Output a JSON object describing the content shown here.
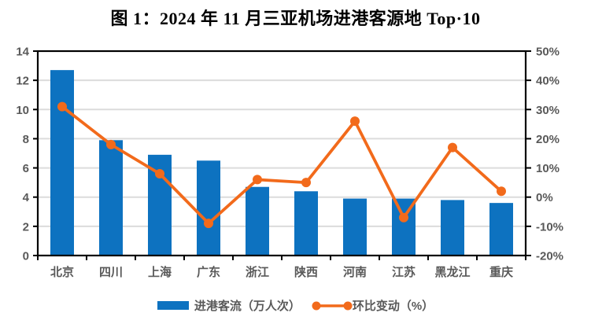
{
  "title": "图 1：2024 年 11 月三亚机场进港客源地 Top·10",
  "colors": {
    "bar": "#0D72C0",
    "line": "#F26A1B",
    "gridline": "#DCDCDC",
    "axis_line": "#000000",
    "axis_text": "#595959",
    "title_text": "#000000"
  },
  "chart_data": {
    "type": "bar+line combo",
    "title": "图 1：2024 年 11 月三亚机场进港客源地 Top·10",
    "categories": [
      "北京",
      "四川",
      "上海",
      "广东",
      "浙江",
      "陕西",
      "河南",
      "江苏",
      "黑龙江",
      "重庆"
    ],
    "series": [
      {
        "name": "进港客流（万人次）",
        "type": "bar",
        "axis": "left",
        "values": [
          12.7,
          7.9,
          6.9,
          6.5,
          4.7,
          4.4,
          3.9,
          3.9,
          3.8,
          3.6
        ]
      },
      {
        "name": "环比变动（%）",
        "type": "line",
        "axis": "right",
        "values": [
          31,
          18,
          8,
          -9,
          6,
          5,
          26,
          -7,
          17,
          2
        ]
      }
    ],
    "left_axis": {
      "range": [
        0,
        14
      ],
      "tick_values": [
        0,
        2,
        4,
        6,
        8,
        10,
        12,
        14
      ],
      "tick_labels": [
        "0",
        "2",
        "4",
        "6",
        "8",
        "10",
        "12",
        "14"
      ]
    },
    "right_axis": {
      "range": [
        -20,
        50
      ],
      "unit": "%",
      "tick_values": [
        50,
        40,
        30,
        20,
        10,
        0,
        -10,
        -20
      ],
      "tick_labels": [
        "50%",
        "40%",
        "30%",
        "20%",
        "10%",
        "0%",
        "-10%",
        "-20%"
      ]
    },
    "grid": true,
    "legend_position": "bottom"
  }
}
